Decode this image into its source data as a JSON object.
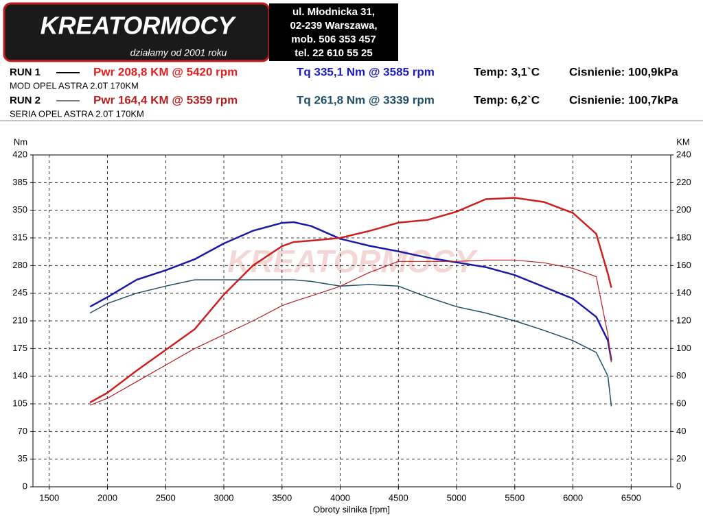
{
  "header": {
    "logo": {
      "brand": "KREATORMOCY",
      "slogan": "działamy od 2001 roku"
    },
    "address": [
      "ul. Młodnicka 31,",
      "02-239  Warszawa,",
      "mob.  506 353 457",
      "tel.  22 610 55 25"
    ]
  },
  "runs": [
    {
      "label": "RUN 1",
      "power": "Pwr  208,8 KM @ 5420 rpm",
      "torque": "Tq 335,1 Nm @ 3585 rpm",
      "temp": "Temp: 3,1`C",
      "pressure": "Cisnienie: 100,9kPa",
      "description": "MOD OPEL ASTRA 2.0T 170KM"
    },
    {
      "label": "RUN 2",
      "power": "Pwr  164,4 KM @ 5359 rpm",
      "torque": "Tq 261,8 Nm @ 3339 rpm",
      "temp": "Temp: 6,2`C",
      "pressure": "Cisnienie: 100,7kPa",
      "description": "SERIA OPEL ASTRA 2.0T 170KM"
    }
  ],
  "chart_data": {
    "type": "line",
    "y_label": "Nm",
    "y2_label": "KM",
    "x_label": "Obroty silnika [rpm]",
    "x": [
      1850,
      2000,
      2250,
      2500,
      2750,
      3000,
      3250,
      3500,
      3600,
      3750,
      4000,
      4250,
      4500,
      4750,
      5000,
      5250,
      5500,
      5750,
      6000,
      6200,
      6300,
      6330
    ],
    "xlim": [
      1360,
      6840
    ],
    "xticks": [
      1500,
      2000,
      2500,
      3000,
      3500,
      4000,
      4500,
      5000,
      5500,
      6000,
      6500
    ],
    "ylim": [
      0,
      420
    ],
    "yticks": [
      0,
      35,
      70,
      105,
      140,
      175,
      210,
      245,
      280,
      315,
      350,
      385,
      420
    ],
    "y2lim": [
      0,
      240
    ],
    "y2ticks": [
      0,
      20,
      40,
      60,
      80,
      100,
      120,
      140,
      160,
      180,
      200,
      220,
      240
    ],
    "grid": true,
    "series": [
      {
        "color": "#1a1aa6",
        "width": 2.5,
        "values": [
          228,
          240,
          262,
          274,
          288,
          308,
          324,
          334,
          335,
          330,
          314,
          305,
          298,
          290,
          284,
          278,
          268,
          253,
          238,
          215,
          185,
          160
        ]
      },
      {
        "color": "#cc1f1f",
        "width": 2.5,
        "axis": "y2",
        "values": [
          61,
          68,
          84,
          99,
          114,
          139,
          160,
          174,
          177,
          178,
          180,
          185,
          191,
          193,
          199,
          208,
          209,
          206,
          198,
          183,
          154,
          144
        ]
      },
      {
        "color": "#1f4f66",
        "width": 1.5,
        "values": [
          220,
          232,
          245,
          254,
          262,
          262,
          262,
          262,
          262,
          260,
          254,
          256,
          254,
          240,
          228,
          220,
          210,
          198,
          185,
          170,
          140,
          102
        ]
      },
      {
        "color": "#b52020",
        "width": 1.2,
        "axis": "y2",
        "values": [
          59,
          64,
          76,
          88,
          100,
          110,
          120,
          131,
          134,
          138,
          145,
          155,
          163,
          163,
          163,
          164,
          164,
          162,
          158,
          152,
          110,
          90
        ]
      }
    ]
  }
}
